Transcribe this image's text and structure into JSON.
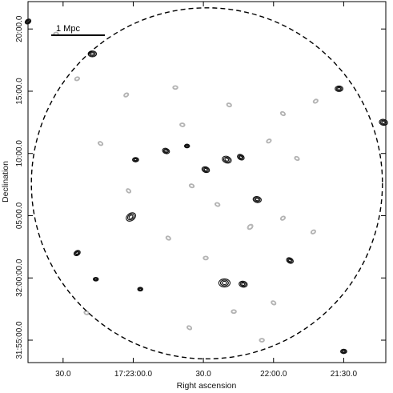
{
  "chart_data": {
    "type": "scatter",
    "title": "",
    "xlabel": "Right ascension",
    "ylabel": "Declination",
    "x_ticks": [
      "30.0",
      "17:23:00.0",
      "30.0",
      "22:00.0",
      "21:30.0"
    ],
    "y_ticks": [
      "20:00.0",
      "15:00.0",
      "10:00.0",
      "05:00.0",
      "32:00:00.0",
      "31:55:00.0"
    ],
    "x_tick_values_sec": [
      1410,
      1380,
      1350,
      1320,
      1290
    ],
    "y_tick_values_min": [
      20,
      15,
      10,
      5,
      0,
      -5
    ],
    "xlim_sec": [
      1425,
      1272
    ],
    "ylim_min": [
      -6.8,
      22.2
    ],
    "x_ra_hour_min": "17:2x",
    "y_dec_deg": "32°",
    "scale_bar_label": "1 Mpc",
    "circle": {
      "center_sec": [
        1348.5,
        7.6
      ],
      "radius_min": 14.1,
      "style": "dashed"
    },
    "grid": false,
    "series": [
      {
        "contour_color": "#111111",
        "sources": [
          {
            "x": 1425,
            "y": 20.6,
            "s": 1.2,
            "a": -30
          },
          {
            "x": 1397.5,
            "y": 18.0,
            "s": 1.6,
            "a": 0
          },
          {
            "x": 1379,
            "y": 9.5,
            "s": 1.2,
            "a": 0
          },
          {
            "x": 1366,
            "y": 10.2,
            "s": 1.4,
            "a": 20
          },
          {
            "x": 1381,
            "y": 4.9,
            "s": 2.0,
            "a": -35
          },
          {
            "x": 1349,
            "y": 8.7,
            "s": 1.5,
            "a": 20
          },
          {
            "x": 1340,
            "y": 9.5,
            "s": 1.8,
            "a": 20
          },
          {
            "x": 1334,
            "y": 9.7,
            "s": 1.4,
            "a": 30
          },
          {
            "x": 1327,
            "y": 6.3,
            "s": 1.6,
            "a": 10
          },
          {
            "x": 1341,
            "y": -0.4,
            "s": 2.2,
            "a": 0
          },
          {
            "x": 1333,
            "y": -0.5,
            "s": 1.6,
            "a": 10
          },
          {
            "x": 1404,
            "y": 2.0,
            "s": 1.3,
            "a": -30
          },
          {
            "x": 1396,
            "y": -0.1,
            "s": 1.0,
            "a": 0
          },
          {
            "x": 1313,
            "y": 1.4,
            "s": 1.4,
            "a": 30
          },
          {
            "x": 1292,
            "y": 15.2,
            "s": 1.5,
            "a": 0
          },
          {
            "x": 1273,
            "y": 12.5,
            "s": 1.6,
            "a": 10
          },
          {
            "x": 1290,
            "y": -5.9,
            "s": 1.2,
            "a": 0
          },
          {
            "x": 1377,
            "y": -0.9,
            "s": 1.0,
            "a": 0
          },
          {
            "x": 1357,
            "y": 10.6,
            "s": 1.0,
            "a": 0
          }
        ]
      },
      {
        "contour_color": "#b3b3b3",
        "sources": [
          {
            "x": 1404,
            "y": 16.0,
            "s": 1.0,
            "a": -20
          },
          {
            "x": 1383,
            "y": 14.7,
            "s": 1.0,
            "a": -30
          },
          {
            "x": 1362,
            "y": 15.3,
            "s": 1.0,
            "a": 0
          },
          {
            "x": 1339,
            "y": 13.9,
            "s": 1.0,
            "a": 20
          },
          {
            "x": 1316,
            "y": 13.2,
            "s": 1.0,
            "a": 30
          },
          {
            "x": 1302,
            "y": 14.2,
            "s": 1.0,
            "a": -30
          },
          {
            "x": 1394,
            "y": 10.8,
            "s": 1.0,
            "a": 30
          },
          {
            "x": 1322,
            "y": 11.0,
            "s": 1.0,
            "a": -30
          },
          {
            "x": 1310,
            "y": 9.6,
            "s": 1.0,
            "a": 30
          },
          {
            "x": 1382,
            "y": 7.0,
            "s": 1.0,
            "a": 40
          },
          {
            "x": 1355,
            "y": 7.4,
            "s": 1.0,
            "a": 20
          },
          {
            "x": 1330,
            "y": 4.1,
            "s": 1.2,
            "a": -40
          },
          {
            "x": 1316,
            "y": 4.8,
            "s": 1.0,
            "a": -30
          },
          {
            "x": 1365,
            "y": 3.2,
            "s": 1.0,
            "a": 30
          },
          {
            "x": 1349,
            "y": 1.6,
            "s": 1.0,
            "a": 0
          },
          {
            "x": 1320,
            "y": -2.0,
            "s": 1.0,
            "a": 30
          },
          {
            "x": 1337,
            "y": -2.7,
            "s": 1.0,
            "a": 0
          },
          {
            "x": 1356,
            "y": -4.0,
            "s": 1.0,
            "a": 30
          },
          {
            "x": 1413,
            "y": 19.6,
            "s": 1.0,
            "a": 0
          },
          {
            "x": 1400,
            "y": -2.8,
            "s": 1.0,
            "a": 20
          },
          {
            "x": 1303,
            "y": 3.7,
            "s": 1.0,
            "a": -30
          },
          {
            "x": 1359,
            "y": 12.3,
            "s": 1.0,
            "a": 10
          },
          {
            "x": 1344,
            "y": 5.9,
            "s": 1.0,
            "a": 20
          },
          {
            "x": 1325,
            "y": -5.0,
            "s": 1.0,
            "a": 0
          }
        ]
      }
    ]
  }
}
